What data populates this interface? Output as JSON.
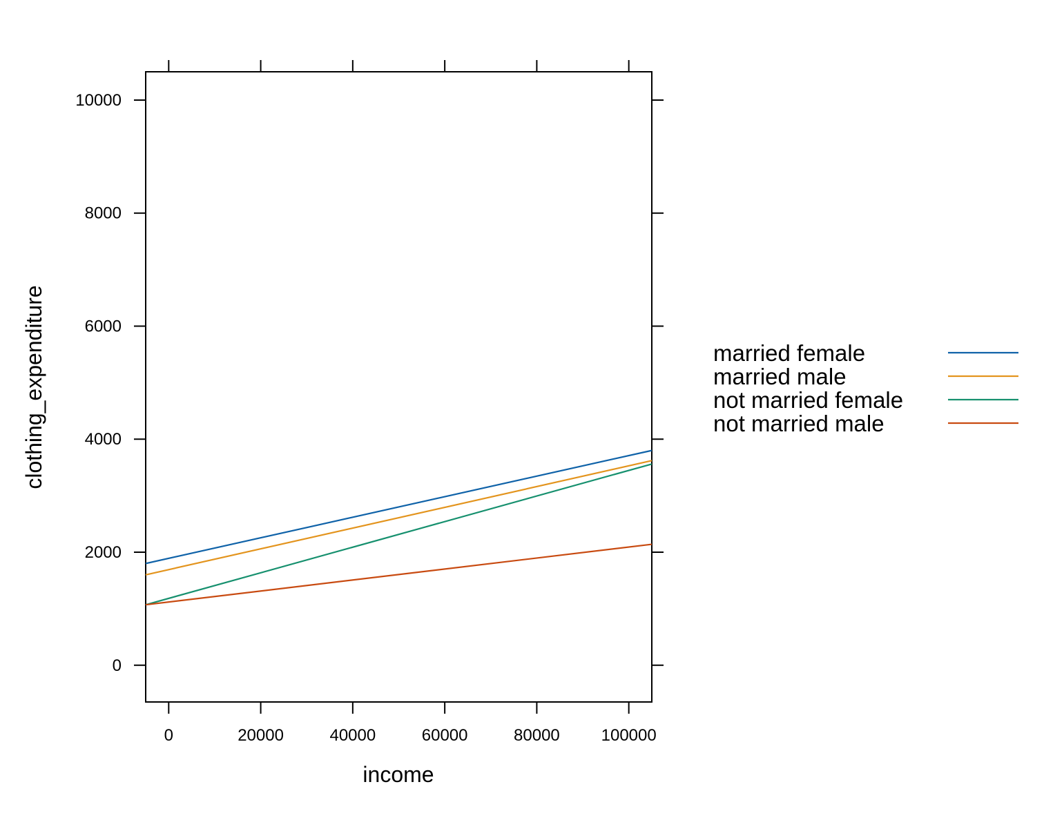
{
  "chart_data": {
    "type": "line",
    "xlabel": "income",
    "ylabel": "clothing_expenditure",
    "xlim": [
      -5000,
      105000
    ],
    "ylim": [
      -650,
      10500
    ],
    "xticks": [
      0,
      20000,
      40000,
      60000,
      80000,
      100000
    ],
    "xtick_labels": [
      "0",
      "20000",
      "40000",
      "60000",
      "80000",
      "100000"
    ],
    "yticks": [
      0,
      2000,
      4000,
      6000,
      8000,
      10000
    ],
    "ytick_labels": [
      "0",
      "2000",
      "4000",
      "6000",
      "8000",
      "10000"
    ],
    "grid": false,
    "legend_position": "right",
    "series": [
      {
        "name": "married female",
        "color": "#0f62a8",
        "x": [
          -5000,
          105000
        ],
        "y": [
          1800,
          3800
        ]
      },
      {
        "name": "married male",
        "color": "#e3941d",
        "x": [
          -5000,
          105000
        ],
        "y": [
          1600,
          3620
        ]
      },
      {
        "name": "not married female",
        "color": "#16906e",
        "x": [
          -5000,
          105000
        ],
        "y": [
          1070,
          3560
        ]
      },
      {
        "name": "not married male",
        "color": "#c84a10",
        "x": [
          -5000,
          105000
        ],
        "y": [
          1070,
          2140
        ]
      }
    ]
  }
}
